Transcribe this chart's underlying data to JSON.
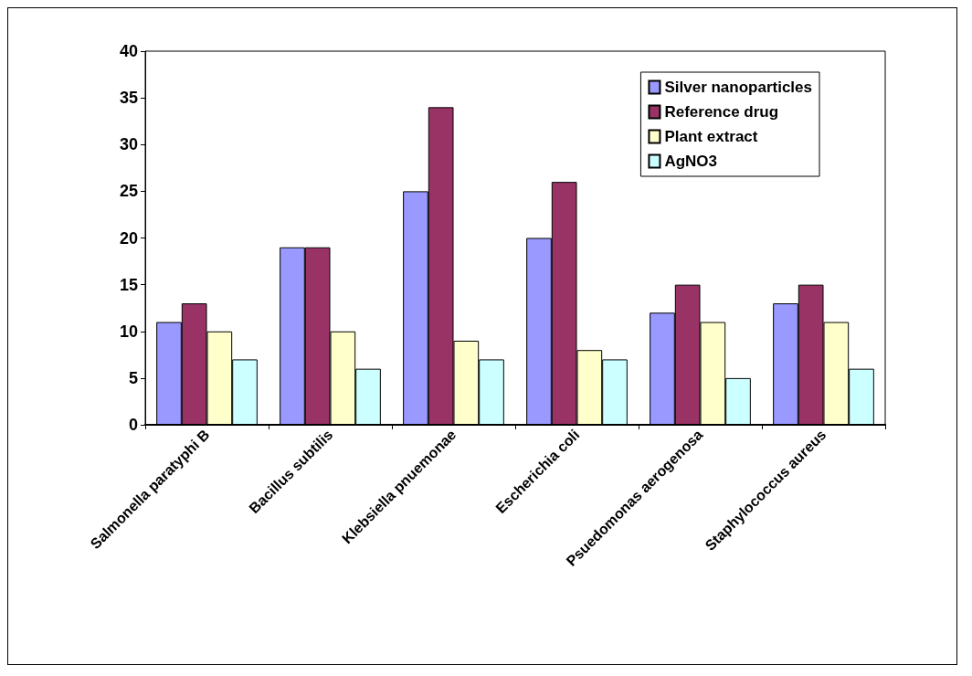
{
  "chart_data": {
    "type": "bar",
    "categories": [
      "Salmonella paratyphi B",
      "Bacillus subtilis",
      "Klebsiella pnuemonae",
      "Escherichia coli",
      "Psuedomonas aerogenosa",
      "Staphylococcus aureus"
    ],
    "series": [
      {
        "name": "Silver nanoparticles",
        "color": "#9999ff",
        "values": [
          11,
          19,
          25,
          20,
          12,
          13
        ]
      },
      {
        "name": "Reference drug",
        "color": "#993366",
        "values": [
          13,
          19,
          34,
          26,
          15,
          15
        ]
      },
      {
        "name": "Plant extract",
        "color": "#ffffcc",
        "values": [
          10,
          10,
          9,
          8,
          11,
          11
        ]
      },
      {
        "name": "AgNO3",
        "color": "#ccffff",
        "values": [
          7,
          6,
          7,
          7,
          5,
          6
        ]
      }
    ],
    "ylim": [
      0,
      40
    ],
    "yticks": [
      0,
      5,
      10,
      15,
      20,
      25,
      30,
      35,
      40
    ],
    "grid": false,
    "legend": "top right"
  }
}
